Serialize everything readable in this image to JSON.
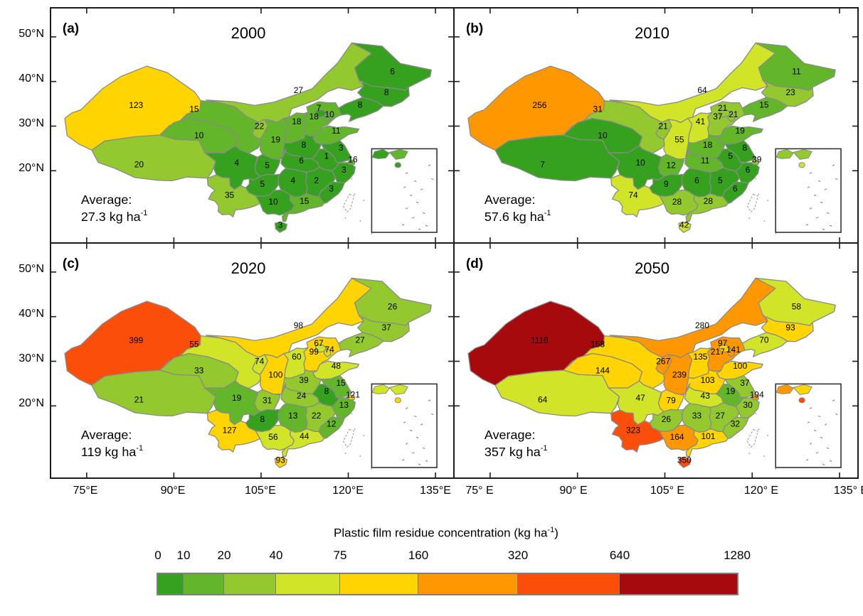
{
  "panels": [
    {
      "id": "a",
      "tag": "(a)",
      "year": "2000",
      "average_label": "Average:",
      "average_value": "27.3",
      "average_unit": "kg ha",
      "average_sup": "-1",
      "values": {
        "XJ": 123,
        "XZ": 20,
        "QH": 10,
        "GS": 15,
        "NX": 22,
        "SN": 19,
        "NM": 27,
        "HL": 6,
        "JL": 8,
        "LN": 8,
        "HE": 18,
        "SX": 18,
        "SD": 11,
        "HA": 8,
        "JS": 3,
        "AH": 1,
        "ZJ": 3,
        "JX": 2,
        "FJ": 3,
        "HB": 6,
        "HN": 4,
        "CQ": 5,
        "SC": 4,
        "GZ": 5,
        "YN": 35,
        "GX": 10,
        "GD": 15,
        "HI": 3,
        "BJ": 7,
        "TJ": 10,
        "SH": 16
      },
      "color_overrides": {
        "GX": 0
      }
    },
    {
      "id": "b",
      "tag": "(b)",
      "year": "2010",
      "average_label": "Average:",
      "average_value": "57.6",
      "average_unit": "kg ha",
      "average_sup": "-1",
      "values": {
        "XJ": 256,
        "XZ": 7,
        "QH": 10,
        "GS": 31,
        "NX": 21,
        "SN": 55,
        "NM": 64,
        "HL": 11,
        "JL": 23,
        "LN": 15,
        "HE": 37,
        "SX": 41,
        "SD": 19,
        "HA": 18,
        "JS": 8,
        "AH": 5,
        "ZJ": 6,
        "JX": 5,
        "FJ": 6,
        "HB": 11,
        "HN": 6,
        "CQ": 12,
        "SC": 10,
        "GZ": 9,
        "YN": 74,
        "GX": 28,
        "GD": 28,
        "HI": 42,
        "BJ": 21,
        "TJ": 21,
        "SH": 39
      },
      "color_overrides": {
        "QH": 0,
        "SC": 0
      }
    },
    {
      "id": "c",
      "tag": "(c)",
      "year": "2020",
      "average_label": "Average:",
      "average_value": "119",
      "average_unit": "kg ha",
      "average_sup": "-1",
      "values": {
        "XJ": 399,
        "XZ": 21,
        "QH": 33,
        "GS": 55,
        "NX": 74,
        "SN": 100,
        "NM": 98,
        "HL": 26,
        "JL": 37,
        "LN": 27,
        "HE": 99,
        "SX": 60,
        "SD": 48,
        "HA": 39,
        "JS": 15,
        "AH": 8,
        "ZJ": 13,
        "JX": 22,
        "FJ": 12,
        "HB": 24,
        "HN": 13,
        "CQ": 31,
        "SC": 19,
        "GZ": 8,
        "YN": 127,
        "GX": 56,
        "GD": 44,
        "HI": 93,
        "BJ": 67,
        "TJ": 74,
        "SH": 121
      },
      "color_overrides": {}
    },
    {
      "id": "d",
      "tag": "(d)",
      "year": "2050",
      "average_label": "Average:",
      "average_value": "357",
      "average_unit": "kg ha",
      "average_sup": "-1",
      "values": {
        "XJ": 1118,
        "XZ": 64,
        "QH": 144,
        "GS": 158,
        "NX": 267,
        "SN": 239,
        "NM": 280,
        "HL": 58,
        "JL": 93,
        "LN": 70,
        "HE": 217,
        "SX": 135,
        "SD": 100,
        "HA": 103,
        "JS": 37,
        "AH": 19,
        "ZJ": 30,
        "JX": 27,
        "FJ": 32,
        "HB": 43,
        "HN": 33,
        "CQ": 79,
        "SC": 47,
        "GZ": 26,
        "YN": 323,
        "GX": 164,
        "GD": 101,
        "HI": 350,
        "BJ": 97,
        "TJ": 141,
        "SH": 194
      },
      "color_overrides": {
        "TJ": 5
      }
    }
  ],
  "axes": {
    "lat_labels": [
      "50°N",
      "40°N",
      "30°N",
      "20°N"
    ],
    "lon_labels_left": [
      "75°E",
      "90°E",
      "105°E",
      "120°E",
      "135°E"
    ],
    "lon_labels_right": [
      "75° E",
      "90° E",
      "105° E",
      "120° E",
      "135° E"
    ]
  },
  "colorbar": {
    "title_pre": "Plastic film residue concentration (kg ha",
    "title_sup": "-1",
    "title_post": ")",
    "tick_labels": [
      "0",
      "10",
      "20",
      "40",
      "75",
      "160",
      "320",
      "640",
      "1280"
    ],
    "breaks_num": [
      0,
      10,
      20,
      40,
      75,
      160,
      320,
      640
    ],
    "colors": [
      "#35a11e",
      "#63b52a",
      "#93c92e",
      "#d2e428",
      "#ffd400",
      "#ff9800",
      "#fc4e0b",
      "#a60a0d"
    ]
  },
  "chart_data": {
    "type": "heatmap",
    "subtype": "choropleth-map-of-china",
    "title": "Plastic film residue concentration (kg ha-1)",
    "categories": [
      "Xinjiang",
      "Tibet",
      "Qinghai",
      "Gansu",
      "Ningxia",
      "Shaanxi",
      "Inner Mongolia",
      "Heilongjiang",
      "Jilin",
      "Liaoning",
      "Hebei",
      "Shanxi",
      "Shandong",
      "Henan",
      "Jiangsu",
      "Anhui",
      "Zhejiang",
      "Jiangxi",
      "Fujian",
      "Hubei",
      "Hunan",
      "Chongqing",
      "Sichuan",
      "Guizhou",
      "Yunnan",
      "Guangxi",
      "Guangdong",
      "Hainan",
      "Beijing",
      "Tianjin",
      "Shanghai"
    ],
    "series": [
      {
        "name": "2000",
        "values": [
          123,
          20,
          10,
          15,
          22,
          19,
          27,
          6,
          8,
          8,
          18,
          18,
          11,
          8,
          3,
          1,
          3,
          2,
          3,
          6,
          4,
          5,
          4,
          5,
          35,
          10,
          15,
          3,
          7,
          10,
          16
        ],
        "average": "27.3 kg ha-1"
      },
      {
        "name": "2010",
        "values": [
          256,
          7,
          10,
          31,
          21,
          55,
          64,
          11,
          23,
          15,
          37,
          41,
          19,
          18,
          8,
          5,
          6,
          5,
          6,
          11,
          6,
          12,
          10,
          9,
          74,
          28,
          28,
          42,
          21,
          21,
          39
        ],
        "average": "57.6 kg ha-1"
      },
      {
        "name": "2020",
        "values": [
          399,
          21,
          33,
          55,
          74,
          100,
          98,
          26,
          37,
          27,
          99,
          60,
          48,
          39,
          15,
          8,
          13,
          22,
          12,
          24,
          13,
          31,
          19,
          8,
          127,
          56,
          44,
          93,
          67,
          74,
          121
        ],
        "average": "119 kg ha-1"
      },
      {
        "name": "2050",
        "values": [
          1118,
          64,
          144,
          158,
          267,
          239,
          280,
          58,
          93,
          70,
          217,
          135,
          100,
          103,
          37,
          19,
          30,
          27,
          32,
          43,
          33,
          79,
          47,
          26,
          323,
          164,
          101,
          350,
          97,
          141,
          194
        ],
        "average": "357 kg ha-1"
      }
    ],
    "color_scale_breaks": [
      0,
      10,
      20,
      40,
      75,
      160,
      320,
      640,
      1280
    ],
    "color_scale_colors": [
      "#35a11e",
      "#63b52a",
      "#93c92e",
      "#d2e428",
      "#ffd400",
      "#ff9800",
      "#fc4e0b",
      "#a60a0d"
    ],
    "x_axis_ticks": [
      "75°E",
      "90°E",
      "105°E",
      "120°E",
      "135°E"
    ],
    "y_axis_ticks": [
      "50°N",
      "40°N",
      "30°N",
      "20°N"
    ],
    "legend_position": "bottom"
  }
}
